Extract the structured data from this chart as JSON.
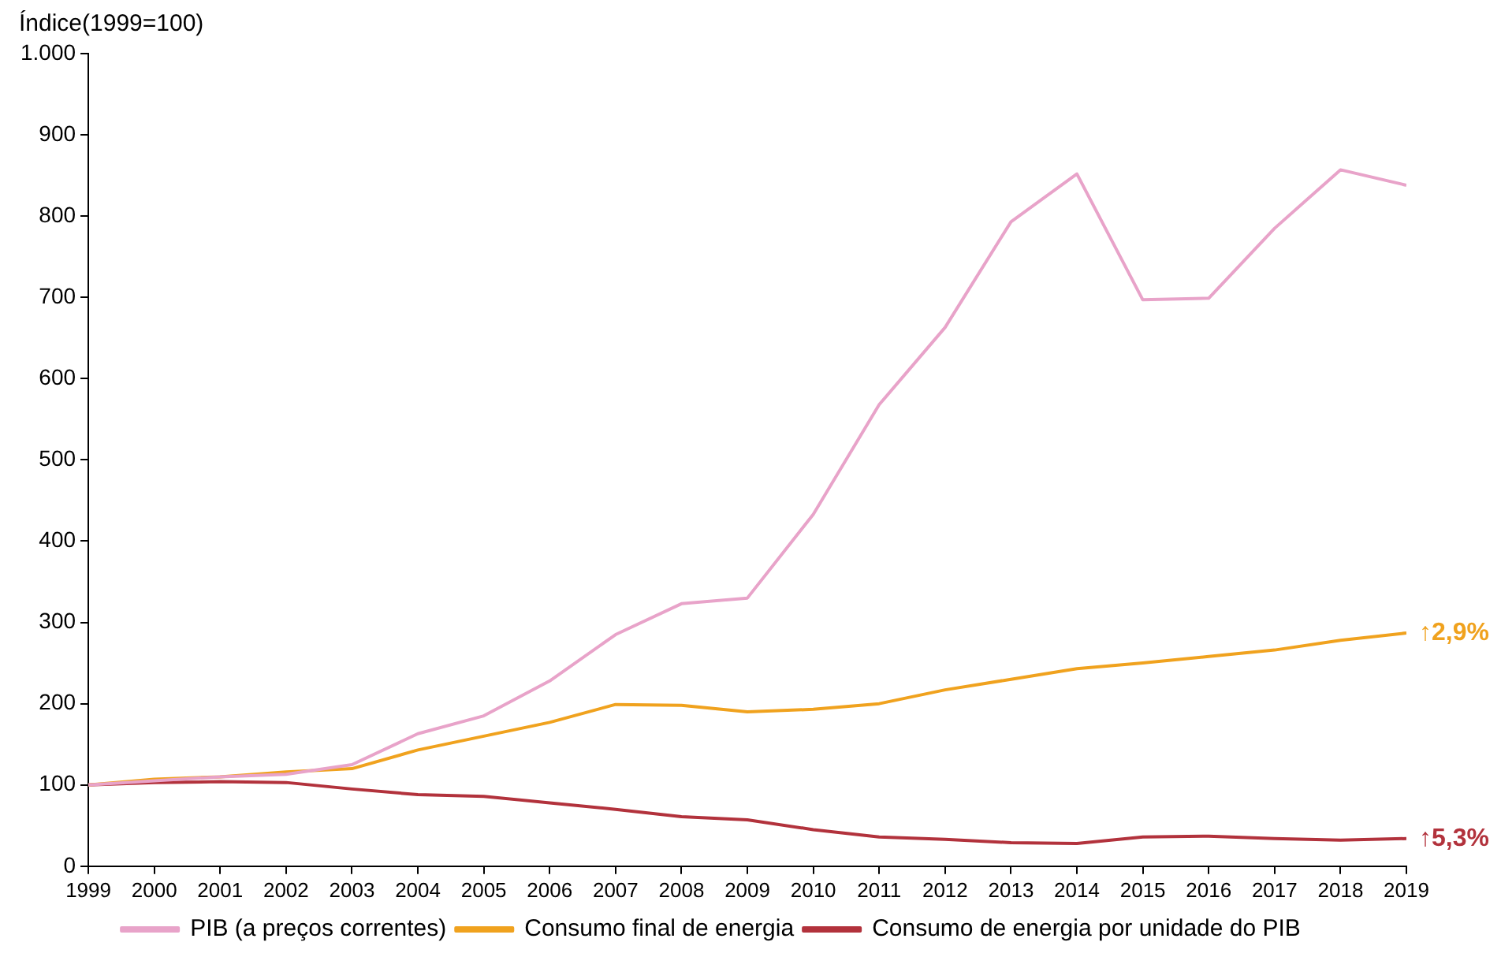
{
  "chart_data": {
    "type": "line",
    "ylabel": "Índice(1999=100)",
    "x": [
      1999,
      2000,
      2001,
      2002,
      2003,
      2004,
      2005,
      2006,
      2007,
      2008,
      2009,
      2010,
      2011,
      2012,
      2013,
      2014,
      2015,
      2016,
      2017,
      2018,
      2019
    ],
    "xlim": [
      1999,
      2019
    ],
    "xticks": [
      1999,
      2000,
      2001,
      2002,
      2003,
      2004,
      2005,
      2006,
      2007,
      2008,
      2009,
      2010,
      2011,
      2012,
      2013,
      2014,
      2015,
      2016,
      2017,
      2018,
      2019
    ],
    "ylim": [
      0,
      1000
    ],
    "yticks": [
      0,
      100,
      200,
      300,
      400,
      500,
      600,
      700,
      800,
      900,
      {
        "value": 1000,
        "label": "1.000"
      }
    ],
    "series": [
      {
        "name": "PIB (a preços correntes)",
        "color": "#e8a3c9",
        "values": [
          100,
          105,
          110,
          113,
          125,
          163,
          185,
          228,
          285,
          323,
          330,
          433,
          568,
          663,
          793,
          852,
          697,
          699,
          785,
          857,
          838
        ]
      },
      {
        "name": "Consumo final de energia",
        "color": "#f0a21e",
        "values": [
          100,
          107,
          110,
          116,
          120,
          143,
          160,
          177,
          199,
          198,
          190,
          193,
          200,
          217,
          230,
          243,
          250,
          258,
          266,
          278,
          287
        ]
      },
      {
        "name": "Consumo de energia por unidade do PIB",
        "color": "#b2323c",
        "values": [
          100,
          103,
          104,
          103,
          95,
          88,
          86,
          78,
          70,
          61,
          57,
          45,
          36,
          33,
          29,
          28,
          36,
          37,
          34,
          32,
          34
        ]
      }
    ],
    "annotations": [
      {
        "text": "↑2,9%",
        "x": 2019,
        "y": 287
      },
      {
        "text": "↑5,3%",
        "x": 2019,
        "y": 34
      }
    ],
    "grid": false,
    "legend": "bottom",
    "marker": "none",
    "line_style": "solid"
  }
}
